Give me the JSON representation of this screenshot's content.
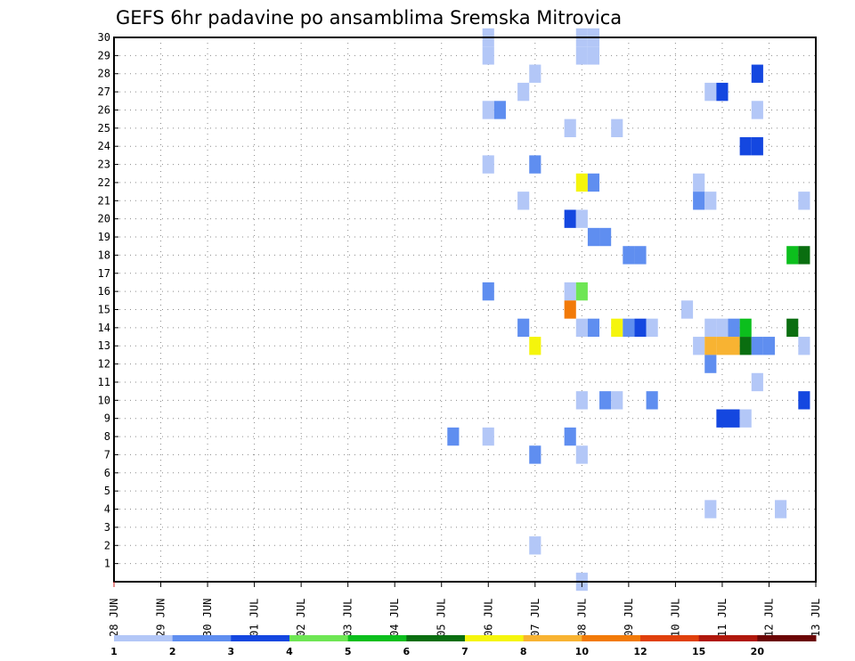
{
  "chart_data": {
    "type": "heatmap",
    "title": "GEFS 6hr padavine po ansamblima Sremska Mitrovica",
    "xlabel": "",
    "ylabel": "",
    "x_ticks": [
      "28 JUN",
      "29 JUN",
      "30 JUN",
      "01 JUL",
      "02 JUL",
      "03 JUL",
      "04 JUL",
      "05 JUL",
      "06 JUL",
      "07 JUL",
      "08 JUL",
      "09 JUL",
      "10 JUL",
      "11 JUL",
      "12 JUL",
      "13 JUL"
    ],
    "y_ticks": [
      "1",
      "2",
      "3",
      "4",
      "5",
      "6",
      "7",
      "8",
      "9",
      "10",
      "11",
      "12",
      "13",
      "14",
      "15",
      "16",
      "17",
      "18",
      "19",
      "20",
      "21",
      "22",
      "23",
      "24",
      "25",
      "26",
      "27",
      "28",
      "29",
      "30"
    ],
    "xlim": [
      0,
      15
    ],
    "ylim": [
      0,
      30
    ],
    "grid": true,
    "cell_width_days": 0.25,
    "colorbar": {
      "labels": [
        "1",
        "2",
        "3",
        "4",
        "5",
        "6",
        "7",
        "8",
        "10",
        "12",
        "15",
        "20"
      ],
      "colors": [
        "#b3c7f7",
        "#5f8ef0",
        "#1447e0",
        "#6ee654",
        "#0cbf1d",
        "#0a6e10",
        "#f5f50c",
        "#f8b332",
        "#f27a08",
        "#e0400c",
        "#b0180c",
        "#6b0505"
      ]
    },
    "cells": [
      {
        "x": 8.0,
        "y": 29,
        "level": 1
      },
      {
        "x": 8.0,
        "y": 30,
        "level": 1
      },
      {
        "x": 10.0,
        "y": 29,
        "level": 1
      },
      {
        "x": 10.0,
        "y": 30,
        "level": 1
      },
      {
        "x": 10.25,
        "y": 29,
        "level": 1
      },
      {
        "x": 10.25,
        "y": 30,
        "level": 1
      },
      {
        "x": 9.0,
        "y": 28,
        "level": 1
      },
      {
        "x": 13.75,
        "y": 28,
        "level": 3
      },
      {
        "x": 8.75,
        "y": 27,
        "level": 1
      },
      {
        "x": 12.75,
        "y": 27,
        "level": 1
      },
      {
        "x": 13.0,
        "y": 27,
        "level": 3
      },
      {
        "x": 8.0,
        "y": 26,
        "level": 1
      },
      {
        "x": 8.25,
        "y": 26,
        "level": 2
      },
      {
        "x": 13.75,
        "y": 26,
        "level": 1
      },
      {
        "x": 9.75,
        "y": 25,
        "level": 1
      },
      {
        "x": 10.75,
        "y": 25,
        "level": 1
      },
      {
        "x": 13.5,
        "y": 24,
        "level": 3
      },
      {
        "x": 13.75,
        "y": 24,
        "level": 3
      },
      {
        "x": 8.0,
        "y": 23,
        "level": 1
      },
      {
        "x": 9.0,
        "y": 23,
        "level": 2
      },
      {
        "x": 10.0,
        "y": 22,
        "level": 7
      },
      {
        "x": 10.25,
        "y": 22,
        "level": 2
      },
      {
        "x": 12.5,
        "y": 22,
        "level": 1
      },
      {
        "x": 8.75,
        "y": 21,
        "level": 1
      },
      {
        "x": 12.5,
        "y": 21,
        "level": 2
      },
      {
        "x": 12.75,
        "y": 21,
        "level": 1
      },
      {
        "x": 14.75,
        "y": 21,
        "level": 1
      },
      {
        "x": 9.75,
        "y": 20,
        "level": 3
      },
      {
        "x": 10.0,
        "y": 20,
        "level": 1
      },
      {
        "x": 10.25,
        "y": 19,
        "level": 2
      },
      {
        "x": 10.5,
        "y": 19,
        "level": 2
      },
      {
        "x": 11.0,
        "y": 18,
        "level": 2
      },
      {
        "x": 11.25,
        "y": 18,
        "level": 2
      },
      {
        "x": 14.5,
        "y": 18,
        "level": 5
      },
      {
        "x": 14.75,
        "y": 18,
        "level": 6
      },
      {
        "x": 8.0,
        "y": 16,
        "level": 2
      },
      {
        "x": 9.75,
        "y": 16,
        "level": 1
      },
      {
        "x": 10.0,
        "y": 16,
        "level": 4
      },
      {
        "x": 9.75,
        "y": 15,
        "level": 9
      },
      {
        "x": 12.25,
        "y": 15,
        "level": 1
      },
      {
        "x": 8.75,
        "y": 14,
        "level": 2
      },
      {
        "x": 10.0,
        "y": 14,
        "level": 1
      },
      {
        "x": 10.25,
        "y": 14,
        "level": 2
      },
      {
        "x": 10.75,
        "y": 14,
        "level": 7
      },
      {
        "x": 11.0,
        "y": 14,
        "level": 2
      },
      {
        "x": 11.25,
        "y": 14,
        "level": 3
      },
      {
        "x": 11.5,
        "y": 14,
        "level": 1
      },
      {
        "x": 12.75,
        "y": 14,
        "level": 1
      },
      {
        "x": 13.0,
        "y": 14,
        "level": 1
      },
      {
        "x": 13.25,
        "y": 14,
        "level": 2
      },
      {
        "x": 13.5,
        "y": 14,
        "level": 5
      },
      {
        "x": 14.5,
        "y": 14,
        "level": 6
      },
      {
        "x": 9.0,
        "y": 13,
        "level": 7
      },
      {
        "x": 12.5,
        "y": 13,
        "level": 1
      },
      {
        "x": 12.75,
        "y": 13,
        "level": 8
      },
      {
        "x": 13.0,
        "y": 13,
        "level": 8
      },
      {
        "x": 13.25,
        "y": 13,
        "level": 8
      },
      {
        "x": 13.5,
        "y": 13,
        "level": 6
      },
      {
        "x": 13.75,
        "y": 13,
        "level": 2
      },
      {
        "x": 14.0,
        "y": 13,
        "level": 2
      },
      {
        "x": 14.75,
        "y": 13,
        "level": 1
      },
      {
        "x": 12.75,
        "y": 12,
        "level": 2
      },
      {
        "x": 13.75,
        "y": 11,
        "level": 1
      },
      {
        "x": 10.0,
        "y": 10,
        "level": 1
      },
      {
        "x": 10.5,
        "y": 10,
        "level": 2
      },
      {
        "x": 10.75,
        "y": 10,
        "level": 1
      },
      {
        "x": 11.5,
        "y": 10,
        "level": 2
      },
      {
        "x": 14.75,
        "y": 10,
        "level": 3
      },
      {
        "x": 13.0,
        "y": 9,
        "level": 3
      },
      {
        "x": 13.25,
        "y": 9,
        "level": 3
      },
      {
        "x": 13.5,
        "y": 9,
        "level": 1
      },
      {
        "x": 7.25,
        "y": 8,
        "level": 2
      },
      {
        "x": 8.0,
        "y": 8,
        "level": 1
      },
      {
        "x": 9.75,
        "y": 8,
        "level": 2
      },
      {
        "x": 9.0,
        "y": 7,
        "level": 2
      },
      {
        "x": 10.0,
        "y": 7,
        "level": 1
      },
      {
        "x": 12.75,
        "y": 4,
        "level": 1
      },
      {
        "x": 14.25,
        "y": 4,
        "level": 1
      },
      {
        "x": 9.0,
        "y": 2,
        "level": 1
      },
      {
        "x": 10.0,
        "y": 0,
        "level": 1
      }
    ]
  }
}
